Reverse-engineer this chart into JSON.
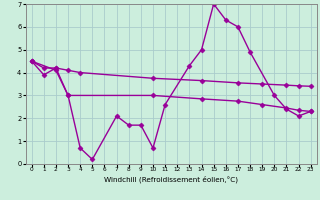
{
  "series": {
    "volatile": {
      "x": [
        0,
        1,
        2,
        3,
        4,
        5,
        7,
        8,
        9,
        10,
        11,
        13,
        14,
        15,
        16,
        17,
        18,
        20,
        21,
        22,
        23
      ],
      "y": [
        4.5,
        3.9,
        4.2,
        3.0,
        0.7,
        0.2,
        2.1,
        1.7,
        1.7,
        0.7,
        2.6,
        4.3,
        5.0,
        7.0,
        6.3,
        6.0,
        4.9,
        3.0,
        2.4,
        2.1,
        2.3
      ]
    },
    "upper": {
      "x": [
        0,
        1,
        2,
        3,
        4,
        10,
        14,
        17,
        19,
        21,
        22,
        23
      ],
      "y": [
        4.5,
        4.2,
        4.2,
        4.1,
        4.0,
        3.75,
        3.65,
        3.55,
        3.5,
        3.45,
        3.42,
        3.4
      ]
    },
    "lower": {
      "x": [
        0,
        2,
        3,
        10,
        14,
        17,
        19,
        21,
        22,
        23
      ],
      "y": [
        4.5,
        4.1,
        3.0,
        3.0,
        2.85,
        2.75,
        2.6,
        2.45,
        2.35,
        2.3
      ]
    }
  },
  "color": "#990099",
  "background": "#cceedd",
  "grid_color": "#aacccc",
  "xlabel": "Windchill (Refroidissement éolien,°C)",
  "xlim": [
    -0.5,
    23.5
  ],
  "ylim": [
    0,
    7
  ],
  "yticks": [
    0,
    1,
    2,
    3,
    4,
    5,
    6,
    7
  ],
  "xticks": [
    0,
    1,
    2,
    3,
    4,
    5,
    6,
    7,
    8,
    9,
    10,
    11,
    12,
    13,
    14,
    15,
    16,
    17,
    18,
    19,
    20,
    21,
    22,
    23
  ],
  "marker": "D",
  "markersize": 2.5,
  "linewidth": 1.0
}
